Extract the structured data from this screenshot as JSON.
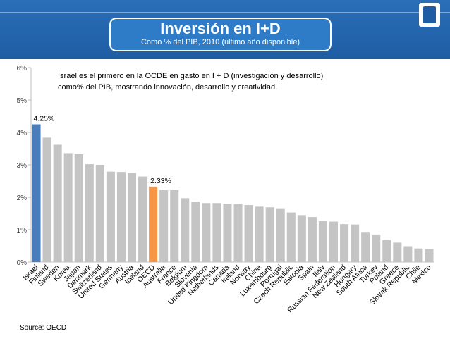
{
  "header": {
    "title": "Inversión en I+D",
    "subtitle": "Como  % del PIB, 2010 (último año disponible)"
  },
  "annotation": {
    "line1": "Israel es el primero en la OCDE en gasto en I + D (investigación y desarrollo)",
    "line2": "como% del PIB, mostrando innovación, desarrollo y creatividad."
  },
  "source": "Source: OECD",
  "colors": {
    "bar": "#c4c4c4",
    "highlight_israel": "#4a7ebb",
    "highlight_oecd": "#f79646",
    "header": "#1e5da3"
  },
  "chart_data": {
    "type": "bar",
    "title": "Inversión en I+D",
    "subtitle": "Como  % del PIB, 2010 (último año disponible)",
    "xlabel": "",
    "ylabel": "",
    "ylim": [
      0,
      6
    ],
    "yticks": [
      "0%",
      "1%",
      "2%",
      "3%",
      "4%",
      "5%",
      "6%"
    ],
    "grid": false,
    "categories": [
      "Israel",
      "Finland",
      "Sweden",
      "Korea",
      "Japan",
      "Denmark",
      "Switzerland",
      "United States",
      "Germany",
      "Austria",
      "Iceland",
      "OECD",
      "Australia",
      "France",
      "Belgium",
      "Slovenia",
      "United Kingdom",
      "Netherlands",
      "Canada",
      "Ireland",
      "Norway",
      "China",
      "Luxembourg",
      "Portugal",
      "Czech Republic",
      "Estonia",
      "Spain",
      "Italy",
      "Russian Federation",
      "New Zealand",
      "Hungary",
      "South Africa",
      "Turkey",
      "Poland",
      "Greece",
      "Slovak Republic",
      "Chile",
      "Mexico"
    ],
    "values": [
      4.25,
      3.84,
      3.62,
      3.36,
      3.33,
      3.02,
      3.0,
      2.79,
      2.78,
      2.75,
      2.64,
      2.33,
      2.22,
      2.22,
      1.97,
      1.86,
      1.82,
      1.82,
      1.8,
      1.79,
      1.76,
      1.71,
      1.69,
      1.66,
      1.53,
      1.45,
      1.39,
      1.26,
      1.25,
      1.17,
      1.16,
      0.93,
      0.85,
      0.68,
      0.6,
      0.49,
      0.42,
      0.4
    ],
    "highlight": [
      "Israel",
      "OECD"
    ],
    "data_labels": [
      {
        "category": "Israel",
        "label": "4.25%"
      },
      {
        "category": "OECD",
        "label": "2.33%"
      }
    ]
  }
}
